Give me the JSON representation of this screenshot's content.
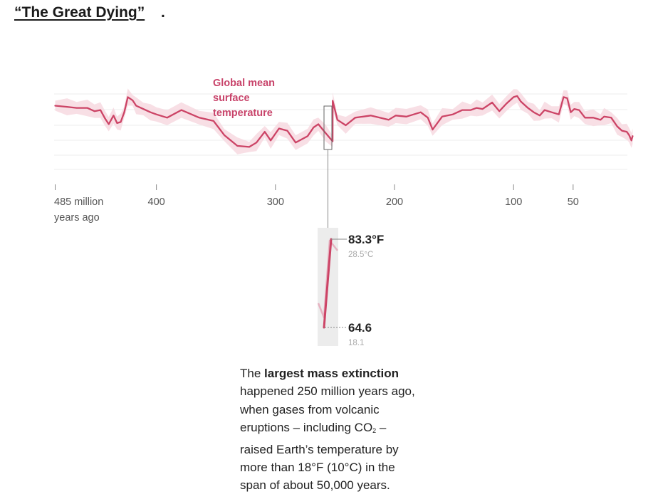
{
  "heading": {
    "link_text": "“The Great Dying”",
    "trailing": "."
  },
  "chart_data": {
    "type": "line",
    "title": "Global mean surface temperature",
    "title_lines": [
      "Global mean",
      "surface",
      "temperature"
    ],
    "xlabel": "years ago (millions)",
    "ylabel": "",
    "x_reversed": true,
    "xlim": [
      485,
      0
    ],
    "ylim": [
      49,
      93
    ],
    "grid": true,
    "colors": {
      "line": "#cc4466",
      "band": "#f7d9e1",
      "title": "#c8436a",
      "grid": "#ececec",
      "axis": "#888888",
      "inset_bg": "#ececec"
    },
    "x_ticks": [
      {
        "value": 485,
        "label": "485 million",
        "label2": "years ago"
      },
      {
        "value": 400,
        "label": "400"
      },
      {
        "value": 300,
        "label": "300"
      },
      {
        "value": 200,
        "label": "200"
      },
      {
        "value": 100,
        "label": "100"
      },
      {
        "value": 50,
        "label": "50"
      }
    ],
    "series": [
      {
        "name": "Global mean surface temperature (°F)",
        "x": [
          485,
          475,
          467,
          458,
          452,
          447,
          443,
          440,
          436,
          433,
          430,
          427,
          424,
          420,
          417,
          411,
          405,
          400,
          391,
          379,
          364,
          352,
          343,
          332,
          322,
          316,
          309,
          304,
          297,
          290,
          283,
          273,
          268,
          264,
          258,
          252,
          251.94,
          248,
          241,
          233,
          220,
          205,
          199,
          190,
          178,
          172,
          168,
          160,
          151,
          143,
          136,
          131,
          126,
          118,
          112,
          106,
          100,
          97,
          94,
          88,
          83,
          78,
          74,
          68,
          62,
          58,
          55,
          52,
          49,
          45,
          40,
          33,
          27,
          24,
          18,
          13,
          9,
          5,
          3,
          1,
          0
        ],
        "y": [
          81,
          80.5,
          80,
          80,
          78.5,
          79,
          75,
          72.5,
          76.5,
          73,
          73.5,
          78,
          85,
          83.5,
          81,
          79.5,
          78,
          77,
          75.5,
          79,
          75.5,
          74,
          67.5,
          62.5,
          62,
          64,
          69,
          65,
          70.5,
          69.5,
          64,
          67,
          71,
          72.5,
          68.5,
          64.6,
          83.3,
          74.5,
          72,
          75.5,
          76.5,
          74.5,
          76.5,
          76,
          78,
          75.5,
          70,
          76,
          77,
          79,
          79,
          80,
          79.5,
          82.5,
          78.5,
          82,
          85,
          85.5,
          83,
          80,
          78,
          76.5,
          79,
          78,
          77,
          85,
          84.5,
          78,
          79.5,
          79,
          75.5,
          75.5,
          74.5,
          76,
          75.5,
          71.5,
          69.5,
          69,
          67.5,
          65,
          67
        ]
      }
    ],
    "inset": {
      "high_f": "83.3°F",
      "high_c": "28.5°C",
      "low_f": "64.6",
      "low_c": "18.1",
      "from_value": 64.6,
      "to_value": 83.3
    }
  },
  "caption": {
    "line1_prefix": "The ",
    "line1_bold": "largest mass extinction",
    "line2": "happened 250 million years ago,",
    "line3": "when gases from volcanic",
    "line4_prefix": "eruptions – including CO",
    "line4_sub": "2",
    "line4_suffix": " –",
    "line5": "raised Earth’s temperature by",
    "line6": "more than 18°F (10°C) in the",
    "line7": "span of about 50,000 years."
  }
}
